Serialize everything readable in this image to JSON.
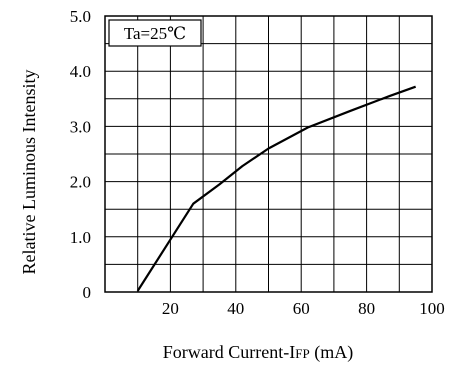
{
  "chart_data": {
    "type": "line",
    "title": "",
    "xlabel": "Forward Current-I",
    "xlabel_sub": "FP",
    "xlabel_unit": " (mA)",
    "ylabel": "Relative Luminous Intensity",
    "annotation": "Ta=25℃",
    "xlim": [
      0,
      100
    ],
    "ylim": [
      0,
      5
    ],
    "x_ticks": [
      20,
      40,
      60,
      80,
      100
    ],
    "x_tick_labels": [
      "20",
      "40",
      "60",
      "80",
      "100"
    ],
    "y_ticks": [
      0,
      1,
      2,
      3,
      4,
      5
    ],
    "y_tick_labels": [
      "0",
      "1.0",
      "2.0",
      "3.0",
      "4.0",
      "5.0"
    ],
    "grid": true,
    "series": [
      {
        "x": [
          10,
          20,
          27,
          35,
          42,
          50,
          62,
          75,
          87,
          95
        ],
        "y": [
          0.02,
          0.95,
          1.6,
          1.95,
          2.28,
          2.6,
          2.98,
          3.28,
          3.55,
          3.72
        ]
      }
    ]
  }
}
